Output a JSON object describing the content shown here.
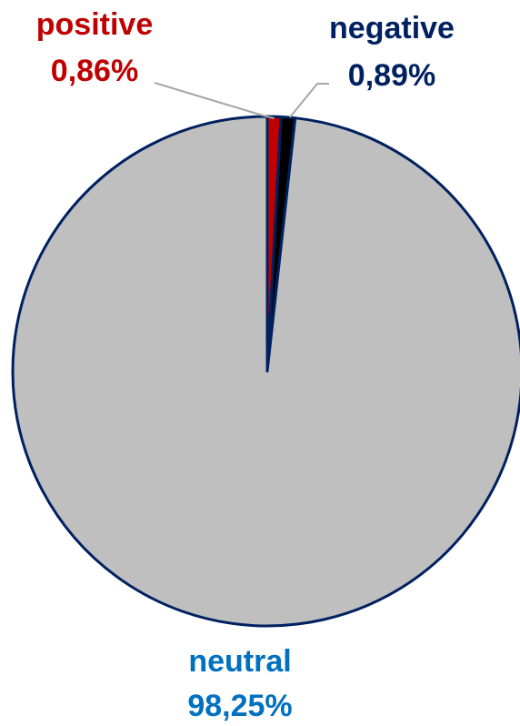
{
  "chart_data": {
    "type": "pie",
    "title": "",
    "slices": [
      {
        "name": "positive",
        "value": 0.86,
        "label": "0,86%",
        "color": "#c00000",
        "label_color": "#c00000"
      },
      {
        "name": "negative",
        "value": 0.89,
        "label": "0,89%",
        "color": "#000000",
        "label_color": "#002060"
      },
      {
        "name": "neutral",
        "value": 98.25,
        "label": "98,25%",
        "color": "#bfbfbf",
        "label_color": "#0070c0"
      }
    ],
    "border_color": "#002060",
    "leader_line_color": "#a6a6a6",
    "legend": "none"
  }
}
